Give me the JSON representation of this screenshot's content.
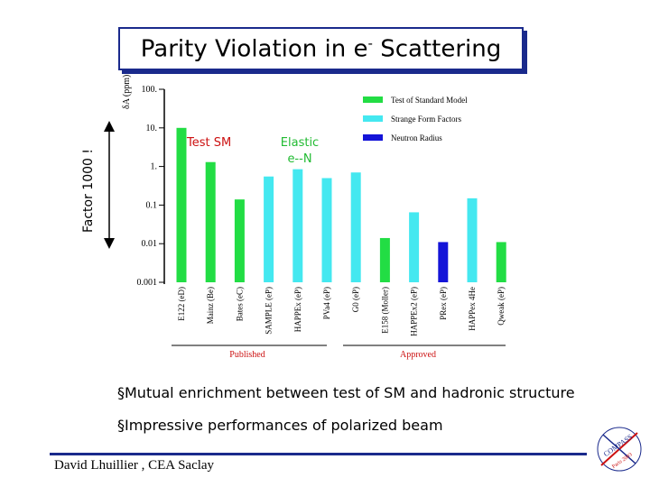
{
  "slide": {
    "title_main": "Parity Violation in e",
    "title_sup": "-",
    "title_end": " Scattering",
    "factor_label": "Factor 1000 !",
    "bullets": [
      "§Mutual enrichment between test of SM and hadronic structure",
      "§Impressive  performances of polarized beam"
    ],
    "author": "David Lhuillier , CEA Saclay",
    "logo_text": [
      "COMPASS",
      "Paris 2003"
    ]
  },
  "chart_data": {
    "type": "bar",
    "ylabel": "δA (ppm)",
    "yscale": "log",
    "ylim": [
      0.001,
      100
    ],
    "yticks": [
      {
        "value": 100,
        "label": "100."
      },
      {
        "value": 10,
        "label": "10."
      },
      {
        "value": 1,
        "label": "1."
      },
      {
        "value": 0.1,
        "label": "0.1"
      },
      {
        "value": 0.01,
        "label": "0.01"
      },
      {
        "value": 0.001,
        "label": "0.001"
      }
    ],
    "categories": [
      "E122 (eD)",
      "Mainz (Be)",
      "Bates (eC)",
      "SAMPLE (eP)",
      "HAPPEx (eP)",
      "PVa4 (eP)",
      "G0 (eP)",
      "E158 (Moller)",
      "HAPPEx2 (eP)",
      "PRex (eP)",
      "HAPPex   4He",
      "Qweak (eP)"
    ],
    "values": [
      10,
      1.3,
      0.14,
      0.55,
      0.85,
      0.5,
      0.7,
      0.014,
      0.065,
      0.011,
      0.15,
      0.011
    ],
    "bar_types": [
      "sm",
      "sm",
      "sm",
      "ff",
      "ff",
      "ff",
      "ff",
      "sm",
      "ff",
      "nr",
      "ff",
      "sm"
    ],
    "legend": [
      {
        "key": "sm",
        "label": "Test of Standard Model",
        "color": "#22dd44"
      },
      {
        "key": "ff",
        "label": "Strange Form Factors",
        "color": "#44e8f0"
      },
      {
        "key": "nr",
        "label": "Neutron Radius",
        "color": "#1414d8"
      }
    ],
    "legend_position": "top-right",
    "annotations": [
      "Test SM",
      "Elastic e--N"
    ],
    "groups": [
      {
        "label": "Published",
        "color": "#cc1111"
      },
      {
        "label": "Approved",
        "color": "#cc1111"
      }
    ]
  }
}
